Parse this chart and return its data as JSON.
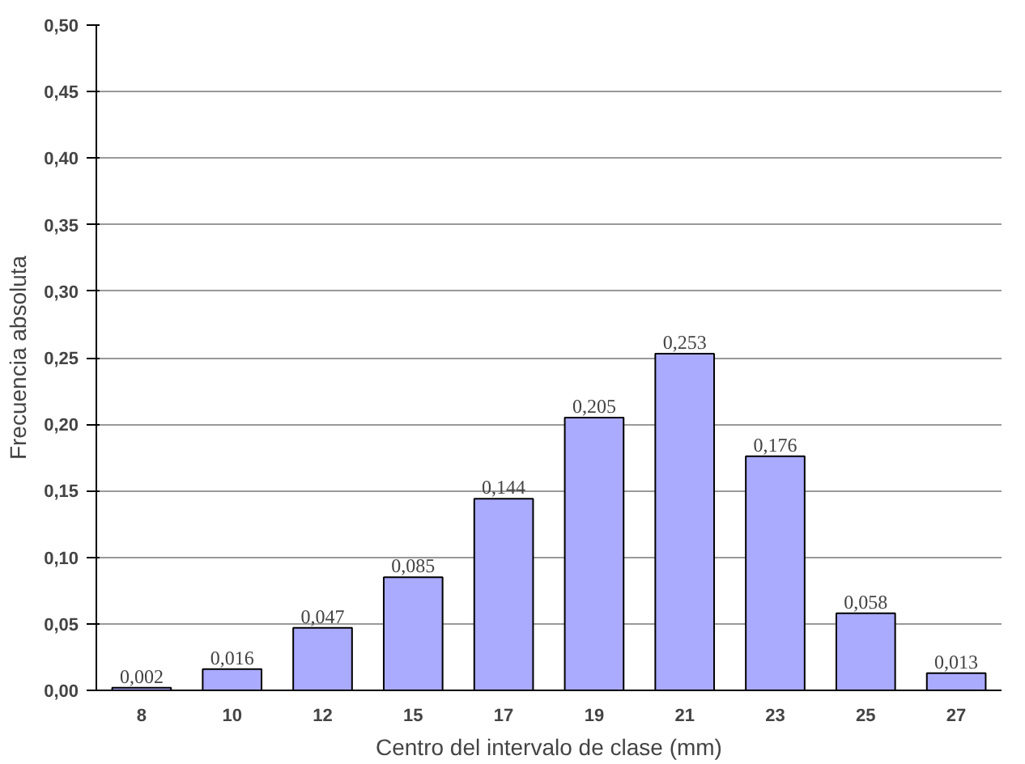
{
  "chart_data": {
    "type": "bar",
    "xlabel": "Centro del intervalo de clase (mm)",
    "ylabel": "Frecuencia absoluta",
    "categories": [
      "8",
      "10",
      "12",
      "15",
      "17",
      "19",
      "21",
      "23",
      "25",
      "27"
    ],
    "values": [
      0.002,
      0.016,
      0.047,
      0.085,
      0.144,
      0.205,
      0.253,
      0.176,
      0.058,
      0.013
    ],
    "value_labels": [
      "0,002",
      "0,016",
      "0,047",
      "0,085",
      "0,144",
      "0,205",
      "0,253",
      "0,176",
      "0,058",
      "0,013"
    ],
    "color": "#aaaaff",
    "ylim": [
      0,
      0.5
    ],
    "yticks": [
      {
        "value": 0,
        "label": "0,00"
      },
      {
        "value": 0.05,
        "label": "0,05"
      },
      {
        "value": 0.1,
        "label": "0,10"
      },
      {
        "value": 0.15,
        "label": "0,15"
      },
      {
        "value": 0.2,
        "label": "0,20"
      },
      {
        "value": 0.25,
        "label": "0,25"
      },
      {
        "value": 0.3,
        "label": "0,30"
      },
      {
        "value": 0.35,
        "label": "0,35"
      },
      {
        "value": 0.4,
        "label": "0,40"
      },
      {
        "value": 0.45,
        "label": "0,45"
      },
      {
        "value": 0.5,
        "label": "0,50"
      }
    ],
    "grid": "y"
  }
}
